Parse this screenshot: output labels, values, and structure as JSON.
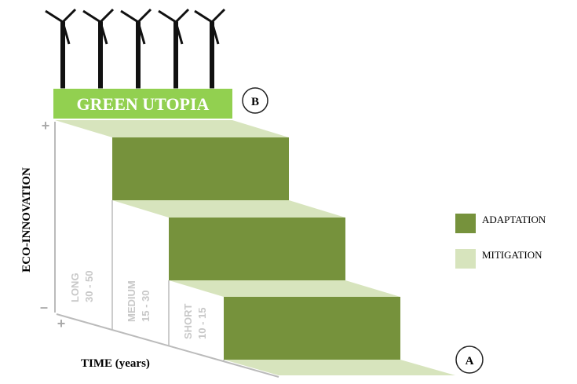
{
  "banner": {
    "title": "GREEN UTOPIA",
    "marker": "B"
  },
  "axes": {
    "y_label": "ECO-INNOVATION",
    "y_plus": "+",
    "y_minus": "–",
    "x_label": "TIME (years)",
    "x_plus": "+"
  },
  "steps": [
    {
      "term": "LONG",
      "range": "30 - 50"
    },
    {
      "term": "MEDIUM",
      "range": "15 - 30"
    },
    {
      "term": "SHORT",
      "range": "10 - 15"
    }
  ],
  "end_marker": "A",
  "legend": [
    {
      "label": "ADAPTATION",
      "color": "#76923c"
    },
    {
      "label": "MITIGATION",
      "color": "#d7e4bd"
    }
  ]
}
